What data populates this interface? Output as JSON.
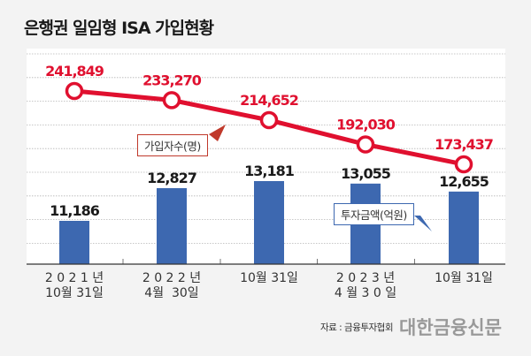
{
  "title": "은행권 일임형 ISA 가입현황",
  "chart_data": {
    "type": "bar+line",
    "title": "은행권 일임형 ISA 가입현황",
    "categories": [
      "2021년 10월 31일",
      "2022년 4월 30일",
      "10월 31일",
      "2023년 4월 30일",
      "10월 31일"
    ],
    "category_labels": [
      [
        "2 0 2 1 년",
        "10월 31일"
      ],
      [
        "2 0 2 2 년",
        "4월  30일"
      ],
      [
        "10월 31일"
      ],
      [
        "2 0 2 3 년",
        "4 월 3 0 일"
      ],
      [
        "10월 31일"
      ]
    ],
    "series": [
      {
        "name": "가입자수(명)",
        "type": "line",
        "values": [
          241849,
          233270,
          214652,
          192030,
          173437
        ],
        "labels": [
          "241,849",
          "233,270",
          "214,652",
          "192,030",
          "173,437"
        ],
        "color": "#e0102f"
      },
      {
        "name": "투자금액(억원)",
        "type": "bar",
        "values": [
          11186,
          12827,
          13181,
          13055,
          12655
        ],
        "labels": [
          "11,186",
          "12,827",
          "13,181",
          "13,055",
          "12,655"
        ],
        "color": "#3d68b0"
      }
    ],
    "legend": [
      "가입자수(명)",
      "투자금액(억원)"
    ],
    "grid": true
  },
  "source": "자료 : 금융투자협회",
  "brand": "대한금융신문"
}
